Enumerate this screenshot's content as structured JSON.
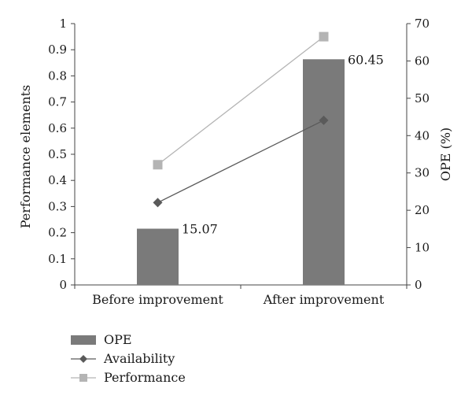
{
  "chart_data": {
    "type": "bar",
    "categories": [
      "Before improvement",
      "After improvement"
    ],
    "ylabel_left": "Performance elements",
    "ylabel_right": "OPE (%)",
    "ylim_left": [
      0,
      1
    ],
    "yticks_left": [
      "0",
      "0.1",
      "0.2",
      "0.3",
      "0.4",
      "0.5",
      "0.6",
      "0.7",
      "0.8",
      "0.9",
      "1"
    ],
    "ylim_right": [
      0,
      70
    ],
    "yticks_right": [
      "0",
      "10",
      "20",
      "30",
      "40",
      "50",
      "60",
      "70"
    ],
    "grid": false,
    "legend_position": "bottom-left",
    "series": [
      {
        "name": "OPE",
        "type": "bar",
        "axis": "right",
        "values": [
          15.07,
          60.45
        ],
        "labels": [
          "15.07",
          "60.45"
        ],
        "color": "#7a7a7a"
      },
      {
        "name": "Availability",
        "type": "line",
        "marker": "diamond",
        "axis": "left",
        "values": [
          0.315,
          0.63
        ],
        "color": "#5a5a5a"
      },
      {
        "name": "Performance",
        "type": "line",
        "marker": "square",
        "axis": "left",
        "values": [
          0.46,
          0.95
        ],
        "color": "#b4b4b4"
      }
    ]
  }
}
